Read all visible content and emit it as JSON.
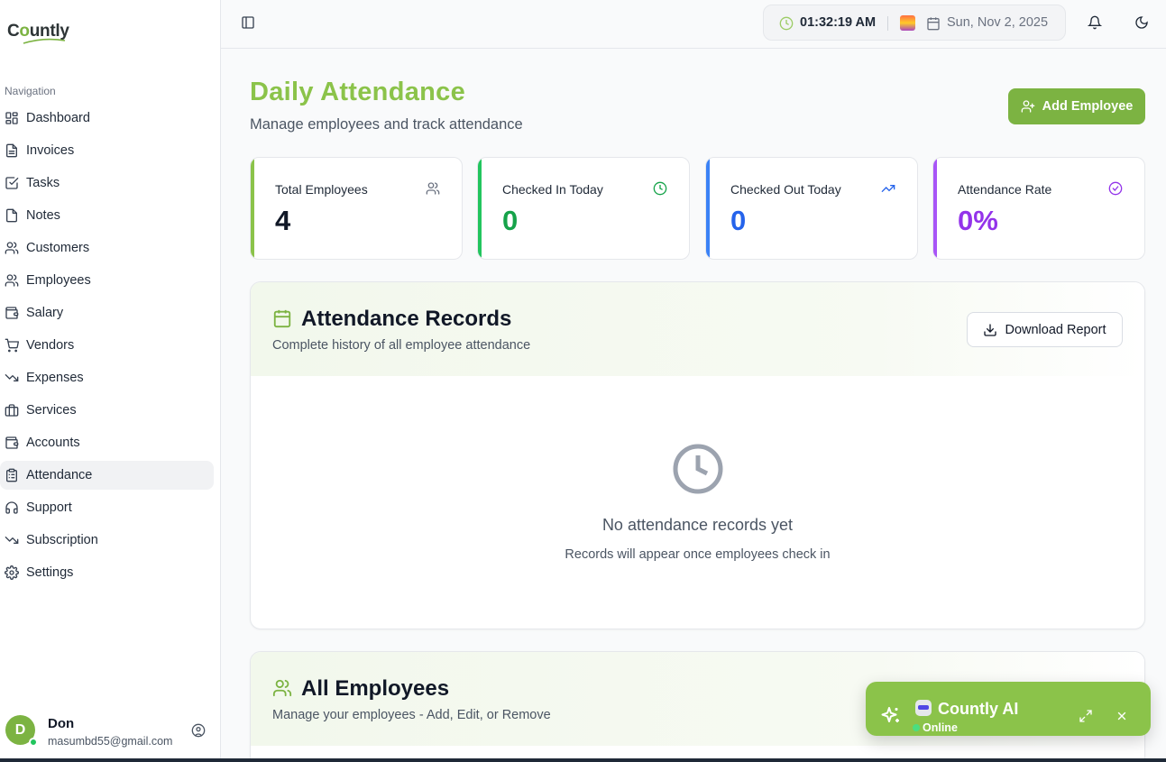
{
  "brand": {
    "logo_pre": "C",
    "logo_o": "o",
    "logo_post": "untly"
  },
  "sidebar": {
    "heading": "Navigation",
    "items": [
      {
        "label": "Dashboard",
        "icon": "grid-icon"
      },
      {
        "label": "Invoices",
        "icon": "file-icon"
      },
      {
        "label": "Tasks",
        "icon": "checkbox-icon"
      },
      {
        "label": "Notes",
        "icon": "note-icon"
      },
      {
        "label": "Customers",
        "icon": "users-icon"
      },
      {
        "label": "Employees",
        "icon": "users-icon"
      },
      {
        "label": "Salary",
        "icon": "wallet-icon"
      },
      {
        "label": "Vendors",
        "icon": "cart-icon"
      },
      {
        "label": "Expenses",
        "icon": "trending-down-icon"
      },
      {
        "label": "Services",
        "icon": "briefcase-icon"
      },
      {
        "label": "Accounts",
        "icon": "wallet-icon"
      },
      {
        "label": "Attendance",
        "icon": "clipboard-icon",
        "active": true
      },
      {
        "label": "Support",
        "icon": "headphones-icon"
      },
      {
        "label": "Subscription",
        "icon": "trending-down-icon"
      },
      {
        "label": "Settings",
        "icon": "gear-icon"
      }
    ],
    "user": {
      "initial": "D",
      "name": "Don",
      "email": "masumbd55@gmail.com"
    }
  },
  "header": {
    "time": "01:32:19 AM",
    "date": "Sun, Nov 2, 2025"
  },
  "page": {
    "title": "Daily Attendance",
    "subtitle": "Manage employees and track attendance",
    "add_button": "Add Employee"
  },
  "stats": [
    {
      "label": "Total Employees",
      "value": "4",
      "accent": "#8bc34a",
      "value_color": "#111827",
      "icon_color": "#6b7280"
    },
    {
      "label": "Checked In Today",
      "value": "0",
      "accent": "#22c55e",
      "value_color": "#16a34a",
      "icon_color": "#16a34a"
    },
    {
      "label": "Checked Out Today",
      "value": "0",
      "accent": "#3b82f6",
      "value_color": "#2563eb",
      "icon_color": "#2563eb"
    },
    {
      "label": "Attendance Rate",
      "value": "0%",
      "accent": "#a855f7",
      "value_color": "#9333ea",
      "icon_color": "#9333ea"
    }
  ],
  "records": {
    "title": "Attendance Records",
    "subtitle": "Complete history of all employee attendance",
    "download": "Download Report",
    "empty_title": "No attendance records yet",
    "empty_sub": "Records will appear once employees check in"
  },
  "employees": {
    "title": "All Employees",
    "subtitle": "Manage your employees - Add, Edit, or Remove"
  },
  "ai": {
    "title": "Countly AI",
    "status": "Online"
  },
  "colors": {
    "brand": "#7cb342",
    "brand_light": "#8bc34a"
  }
}
